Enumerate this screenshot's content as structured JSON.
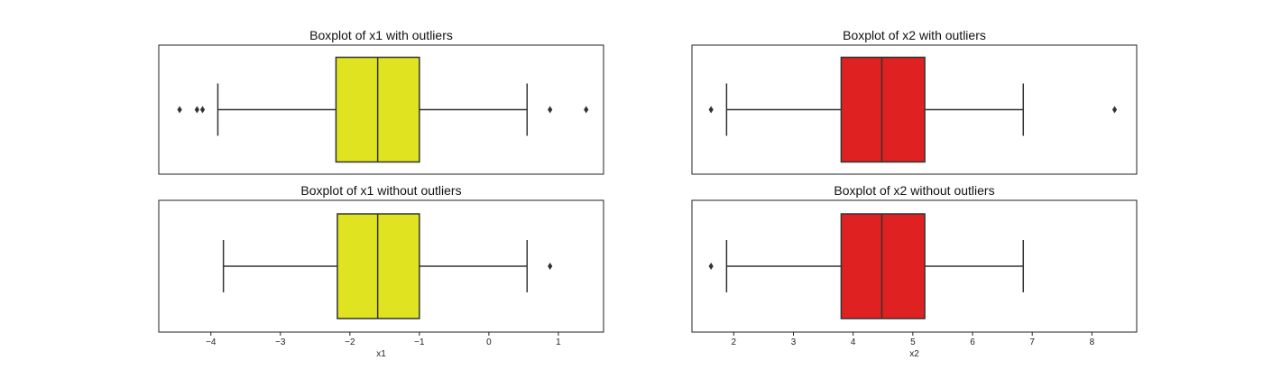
{
  "chart_data": [
    {
      "type": "boxplot",
      "title": "Boxplot of x1 with outliers",
      "xlabel": "",
      "xlim": [
        -4.75,
        1.65
      ],
      "fill_color": "#e0e31f",
      "box": {
        "whisker_low": -3.9,
        "q1": -2.2,
        "median": -1.6,
        "q3": -1.0,
        "whisker_high": 0.55
      },
      "outliers": [
        -4.45,
        -4.2,
        -4.12,
        0.88,
        1.4
      ]
    },
    {
      "type": "boxplot",
      "title": "Boxplot of x2 with outliers",
      "xlabel": "",
      "xlim": [
        1.3,
        8.75
      ],
      "fill_color": "#df2121",
      "box": {
        "whisker_low": 1.88,
        "q1": 3.8,
        "median": 4.48,
        "q3": 5.2,
        "whisker_high": 6.85
      },
      "outliers": [
        1.62,
        8.38
      ]
    },
    {
      "type": "boxplot",
      "title": "Boxplot of x1 without outliers",
      "xlabel": "x1",
      "xlim": [
        -4.75,
        1.65
      ],
      "xticks": [
        -4,
        -3,
        -2,
        -1,
        0,
        1
      ],
      "fill_color": "#e0e31f",
      "box": {
        "whisker_low": -3.82,
        "q1": -2.18,
        "median": -1.6,
        "q3": -1.0,
        "whisker_high": 0.55
      },
      "outliers": [
        0.88
      ]
    },
    {
      "type": "boxplot",
      "title": "Boxplot of x2 without outliers",
      "xlabel": "x2",
      "xlim": [
        1.3,
        8.75
      ],
      "xticks": [
        2,
        3,
        4,
        5,
        6,
        7,
        8
      ],
      "fill_color": "#df2121",
      "box": {
        "whisker_low": 1.88,
        "q1": 3.8,
        "median": 4.48,
        "q3": 5.2,
        "whisker_high": 6.85
      },
      "outliers": [
        1.62
      ]
    }
  ]
}
